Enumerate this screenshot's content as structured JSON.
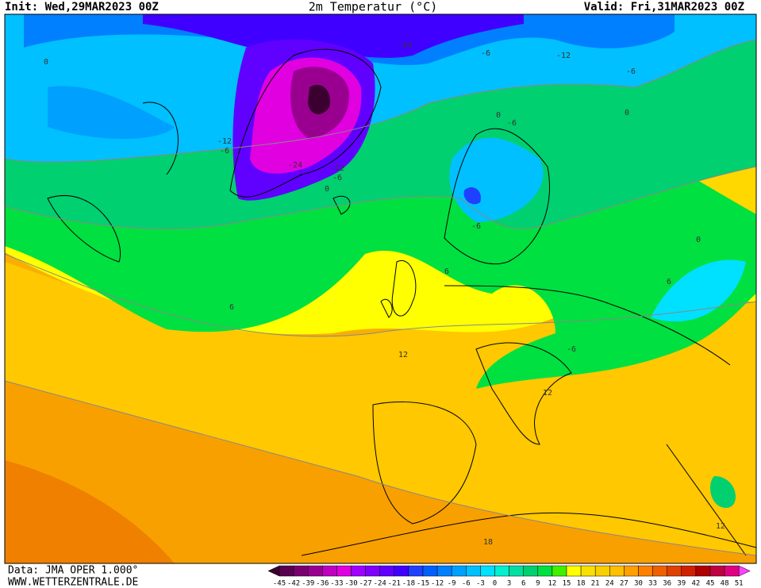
{
  "header": {
    "init": "Init: Wed,29MAR2023 00Z",
    "title": "2m Temperatur (°C)",
    "valid": "Valid: Fri,31MAR2023 00Z"
  },
  "map": {
    "contour_labels": [
      "0",
      "-24",
      "-6",
      "-12",
      "-6",
      "0",
      "-12",
      "-6",
      "-24",
      "-12",
      "-6",
      "0",
      "0",
      "-6",
      "-6",
      "6",
      "0",
      "6",
      "6",
      "12",
      "12",
      "12",
      "18",
      "-6"
    ]
  },
  "footer": {
    "data": "Data: JMA OPER 1.000°",
    "site": "WWW.WETTERZENTRALE.DE"
  },
  "legend": {
    "labels": [
      -45,
      -42,
      -39,
      -36,
      -33,
      -30,
      -27,
      -24,
      -21,
      -18,
      -15,
      -12,
      -9,
      -6,
      -3,
      0,
      3,
      6,
      9,
      12,
      15,
      18,
      21,
      24,
      27,
      30,
      33,
      36,
      39,
      42,
      45,
      48,
      51
    ],
    "colors": [
      "#3a0030",
      "#5a0050",
      "#7a0070",
      "#9a0090",
      "#c000c0",
      "#e000e0",
      "#a000ff",
      "#8000ff",
      "#6000ff",
      "#4000ff",
      "#2040ff",
      "#0060ff",
      "#0080ff",
      "#00a0ff",
      "#00c0ff",
      "#00e0ff",
      "#00f0d0",
      "#00e0a0",
      "#00d070",
      "#00e040",
      "#40f000",
      "#ffff00",
      "#f8e000",
      "#f8d000",
      "#ffc000",
      "#ffa000",
      "#ff8000",
      "#f06000",
      "#e04000",
      "#d02000",
      "#b00000",
      "#c00040",
      "#e00080",
      "#ff40ff"
    ]
  }
}
